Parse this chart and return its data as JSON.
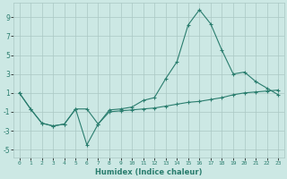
{
  "x_values": [
    0,
    1,
    2,
    3,
    4,
    5,
    6,
    7,
    8,
    9,
    10,
    11,
    12,
    13,
    14,
    15,
    16,
    17,
    18,
    19,
    20,
    21,
    22,
    23
  ],
  "line1_y": [
    1,
    -0.7,
    -2.2,
    -2.5,
    -2.3,
    -0.7,
    -4.5,
    -2.3,
    -0.8,
    -0.7,
    -0.5,
    0.2,
    0.5,
    2.5,
    4.3,
    8.2,
    9.8,
    8.3,
    5.5,
    3.0,
    3.2,
    2.2,
    1.5,
    0.8
  ],
  "line2_y": [
    1,
    -0.7,
    -2.2,
    -2.5,
    -2.3,
    -0.7,
    -0.7,
    -2.3,
    -1.0,
    -0.9,
    -0.8,
    -0.7,
    -0.6,
    -0.4,
    -0.2,
    0.0,
    0.1,
    0.3,
    0.5,
    0.8,
    1.0,
    1.1,
    1.2,
    1.3
  ],
  "line_color": "#2a7d6e",
  "bg_color": "#cce8e4",
  "grid_color": "#aac8c4",
  "xlabel": "Humidex (Indice chaleur)",
  "xlim": [
    -0.5,
    23.5
  ],
  "ylim": [
    -5.8,
    10.5
  ],
  "yticks": [
    -5,
    -3,
    -1,
    1,
    3,
    5,
    7,
    9
  ],
  "xticks": [
    0,
    1,
    2,
    3,
    4,
    5,
    6,
    7,
    8,
    9,
    10,
    11,
    12,
    13,
    14,
    15,
    16,
    17,
    18,
    19,
    20,
    21,
    22,
    23
  ],
  "xtick_labels": [
    "0",
    "1",
    "2",
    "3",
    "4",
    "5",
    "6",
    "7",
    "8",
    "9",
    "10",
    "11",
    "12",
    "13",
    "14",
    "15",
    "16",
    "17",
    "18",
    "19",
    "20",
    "21",
    "22",
    "23"
  ]
}
